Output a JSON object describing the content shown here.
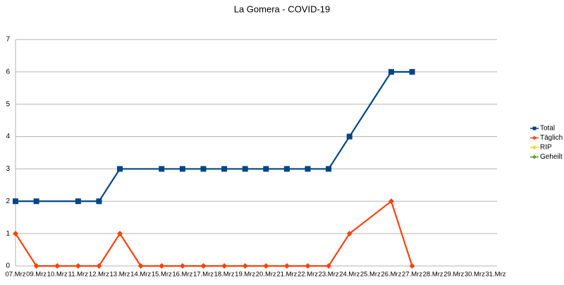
{
  "chart_data": {
    "type": "line",
    "title": "La Gomera - COVID-19",
    "categories": [
      "07.Mrz",
      "09.Mrz",
      "10.Mrz",
      "11.Mrz",
      "12.Mrz",
      "13.Mrz",
      "14.Mrz",
      "15.Mrz",
      "16.Mrz",
      "17.Mrz",
      "18.Mrz",
      "19.Mrz",
      "20.Mrz",
      "21.Mrz",
      "22.Mrz",
      "23.Mrz",
      "24.Mrz",
      "25.Mrz",
      "26.Mrz",
      "27.Mrz",
      "28.Mrz",
      "29.Mrz",
      "30.Mrz",
      "31.Mrz"
    ],
    "series": [
      {
        "name": "Total",
        "color": "#004586",
        "marker": "square",
        "values": [
          2,
          2,
          null,
          2,
          2,
          3,
          null,
          3,
          3,
          3,
          3,
          3,
          3,
          3,
          3,
          3,
          4,
          null,
          6,
          6,
          null,
          null,
          null,
          null
        ]
      },
      {
        "name": "Täglich",
        "color": "#ff420e",
        "marker": "diamond",
        "values": [
          1,
          0,
          0,
          0,
          0,
          1,
          0,
          0,
          0,
          0,
          0,
          0,
          0,
          0,
          0,
          0,
          1,
          null,
          2,
          0,
          null,
          null,
          null,
          null
        ]
      },
      {
        "name": "RIP",
        "color": "#ffd320",
        "marker": "diamond",
        "values": [
          null,
          null,
          null,
          null,
          null,
          null,
          null,
          null,
          null,
          null,
          null,
          null,
          null,
          null,
          null,
          null,
          null,
          null,
          null,
          null,
          null,
          null,
          null,
          null
        ]
      },
      {
        "name": "Geheilt",
        "color": "#579d1c",
        "marker": "diamond",
        "values": [
          null,
          null,
          null,
          null,
          null,
          null,
          null,
          null,
          null,
          null,
          null,
          null,
          null,
          null,
          null,
          null,
          null,
          null,
          null,
          null,
          null,
          null,
          null,
          null
        ]
      }
    ],
    "ylim": [
      0,
      7
    ],
    "yticks": [
      0,
      1,
      2,
      3,
      4,
      5,
      6,
      7
    ],
    "grid": true,
    "legend": "right"
  }
}
